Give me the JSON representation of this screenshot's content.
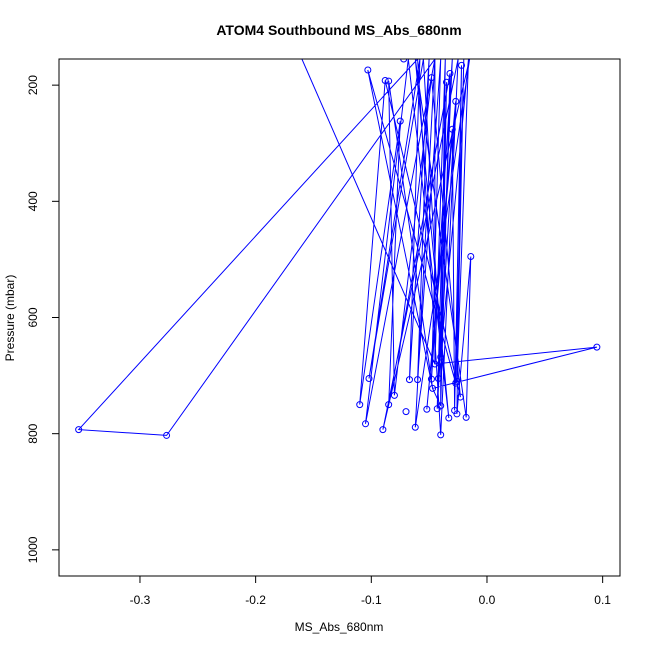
{
  "chart_data": {
    "type": "line",
    "title": "ATOM4 Southbound MS_Abs_680nm",
    "xlabel": "MS_Abs_680nm",
    "ylabel": "Pressure (mbar)",
    "xlim": [
      -0.37,
      0.115
    ],
    "ylim": [
      1045,
      155
    ],
    "y_reversed": true,
    "xticks": [
      -0.3,
      -0.2,
      -0.1,
      0.0,
      0.1
    ],
    "xtick_labels": [
      "-0.3",
      "-0.2",
      "-0.1",
      "0.0",
      "0.1"
    ],
    "yticks": [
      200,
      400,
      600,
      800,
      1000
    ],
    "ytick_labels": [
      "200",
      "400",
      "600",
      "800",
      "1000"
    ],
    "grid": false,
    "series": [
      {
        "color": "#0000ff",
        "marker": "open-circle",
        "points": [
          [
            -0.072,
            155
          ],
          [
            -0.103,
            174
          ],
          [
            -0.085,
            193
          ],
          [
            -0.088,
            192
          ],
          [
            -0.075,
            262
          ],
          [
            -0.048,
            187
          ],
          [
            -0.032,
            180
          ],
          [
            -0.035,
            195
          ],
          [
            -0.027,
            228
          ],
          [
            -0.03,
            276
          ],
          [
            -0.022,
            166
          ],
          [
            -0.014,
            495
          ],
          [
            -0.045,
            680
          ],
          [
            -0.04,
            668
          ],
          [
            -0.102,
            705
          ],
          [
            -0.067,
            707
          ],
          [
            -0.06,
            707
          ],
          [
            -0.048,
            706
          ],
          [
            -0.042,
            705
          ],
          [
            -0.026,
            710
          ],
          [
            -0.027,
            713
          ],
          [
            0.095,
            651
          ],
          [
            -0.047,
            722
          ],
          [
            -0.08,
            734
          ],
          [
            -0.023,
            737
          ],
          [
            -0.11,
            750
          ],
          [
            -0.085,
            750
          ],
          [
            -0.04,
            752
          ],
          [
            -0.043,
            757
          ],
          [
            -0.052,
            758
          ],
          [
            -0.028,
            760
          ],
          [
            -0.026,
            766
          ],
          [
            -0.07,
            762
          ],
          [
            -0.018,
            772
          ],
          [
            -0.033,
            773
          ],
          [
            -0.105,
            783
          ],
          [
            -0.062,
            789
          ],
          [
            -0.09,
            793
          ],
          [
            -0.04,
            802
          ],
          [
            -0.353,
            793
          ],
          [
            -0.277,
            803
          ]
        ],
        "path": [
          [
            -0.16,
            155
          ],
          [
            -0.045,
            680
          ],
          [
            -0.036,
            155
          ],
          [
            -0.04,
            668
          ],
          [
            -0.055,
            155
          ],
          [
            -0.102,
            705
          ],
          [
            -0.058,
            155
          ],
          [
            -0.067,
            707
          ],
          [
            -0.05,
            155
          ],
          [
            -0.06,
            707
          ],
          [
            -0.04,
            155
          ],
          [
            -0.048,
            706
          ],
          [
            -0.03,
            155
          ],
          [
            -0.042,
            705
          ],
          [
            -0.016,
            155
          ],
          [
            -0.026,
            710
          ],
          [
            -0.02,
            155
          ],
          [
            -0.027,
            713
          ],
          [
            -0.103,
            174
          ],
          [
            -0.047,
            722
          ],
          [
            -0.085,
            193
          ],
          [
            -0.08,
            734
          ],
          [
            -0.048,
            187
          ],
          [
            -0.023,
            737
          ],
          [
            -0.088,
            192
          ],
          [
            -0.11,
            750
          ],
          [
            -0.075,
            262
          ],
          [
            -0.085,
            750
          ],
          [
            -0.032,
            180
          ],
          [
            -0.04,
            752
          ],
          [
            -0.035,
            195
          ],
          [
            -0.043,
            757
          ],
          [
            -0.027,
            228
          ],
          [
            -0.052,
            758
          ],
          [
            -0.03,
            276
          ],
          [
            -0.028,
            760
          ],
          [
            -0.022,
            166
          ],
          [
            -0.026,
            766
          ],
          [
            -0.014,
            495
          ],
          [
            -0.018,
            772
          ],
          [
            -0.062,
            155
          ],
          [
            -0.033,
            773
          ],
          [
            -0.068,
            155
          ],
          [
            -0.105,
            783
          ],
          [
            -0.045,
            155
          ],
          [
            -0.062,
            789
          ],
          [
            -0.015,
            155
          ],
          [
            -0.09,
            793
          ],
          [
            -0.025,
            155
          ],
          [
            -0.04,
            802
          ],
          [
            -0.06,
            155
          ],
          [
            -0.353,
            793
          ],
          [
            -0.277,
            803
          ],
          [
            -0.045,
            155
          ],
          [
            -0.045,
            680
          ],
          [
            0.095,
            651
          ],
          [
            -0.047,
            722
          ],
          [
            -0.04,
            752
          ],
          [
            -0.04,
            680
          ]
        ]
      }
    ]
  }
}
